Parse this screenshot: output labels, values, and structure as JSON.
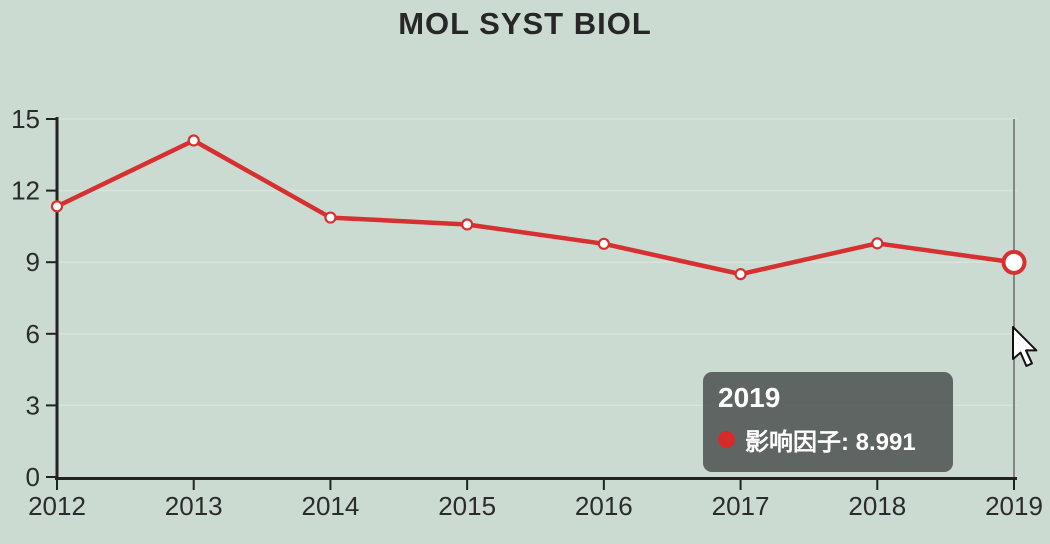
{
  "title": "MOL SYST BIOL",
  "colors": {
    "background": "#cbdbd1",
    "line": "#d63030",
    "marker_fill": "#ffffff",
    "axis": "#222222",
    "grid": "#d8e3da",
    "label": "#2b2b2b",
    "crosshair": "#6b6b6b",
    "tooltip_bg": "#585f5d",
    "tooltip_text": "#ffffff",
    "tooltip_dot": "#d82a2a"
  },
  "chart_data": {
    "type": "line",
    "title": "MOL SYST BIOL",
    "x": [
      2012,
      2013,
      2014,
      2015,
      2016,
      2017,
      2018,
      2019
    ],
    "series": [
      {
        "name": "影响因子",
        "color": "#d63030",
        "values": [
          11.34,
          14.1,
          10.87,
          10.58,
          9.77,
          8.5,
          9.79,
          8.991
        ]
      }
    ],
    "xlabel": "",
    "ylabel": "",
    "ylim": [
      0,
      15
    ],
    "yticks": [
      0,
      3,
      6,
      9,
      12,
      15
    ],
    "grid": true,
    "legend": false,
    "highlighted_x": 2019,
    "highlighted_value": 8.991
  },
  "tooltip": {
    "title": "2019",
    "series_label": "影响因子",
    "value": "8.991",
    "text": "影响因子: 8.991"
  }
}
